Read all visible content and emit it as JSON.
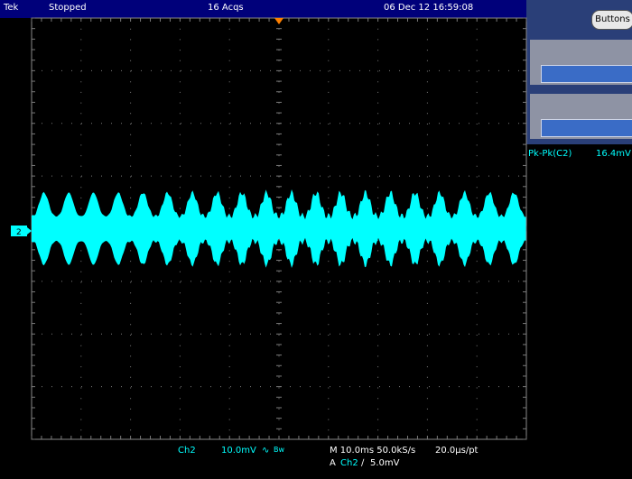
{
  "status_bar": {
    "brand": "Tek",
    "state": "Stopped",
    "acquisitions": "16 Acqs",
    "timestamp": "06 Dec 12 16:59:08"
  },
  "side_panel": {
    "button": "Buttons",
    "measurement": {
      "name": "Pk-Pk(C2)",
      "value": "16.4mV"
    }
  },
  "channel_marker": "2",
  "readout": {
    "channel": "Ch2",
    "scale": "10.0mV",
    "bandwidth": "Bw",
    "timebase": "M 10.0ms 50.0kS/s",
    "resolution": "20.0µs/pt",
    "trigger": {
      "source": "A",
      "channel": "Ch2",
      "level": "5.0mV"
    }
  }
}
